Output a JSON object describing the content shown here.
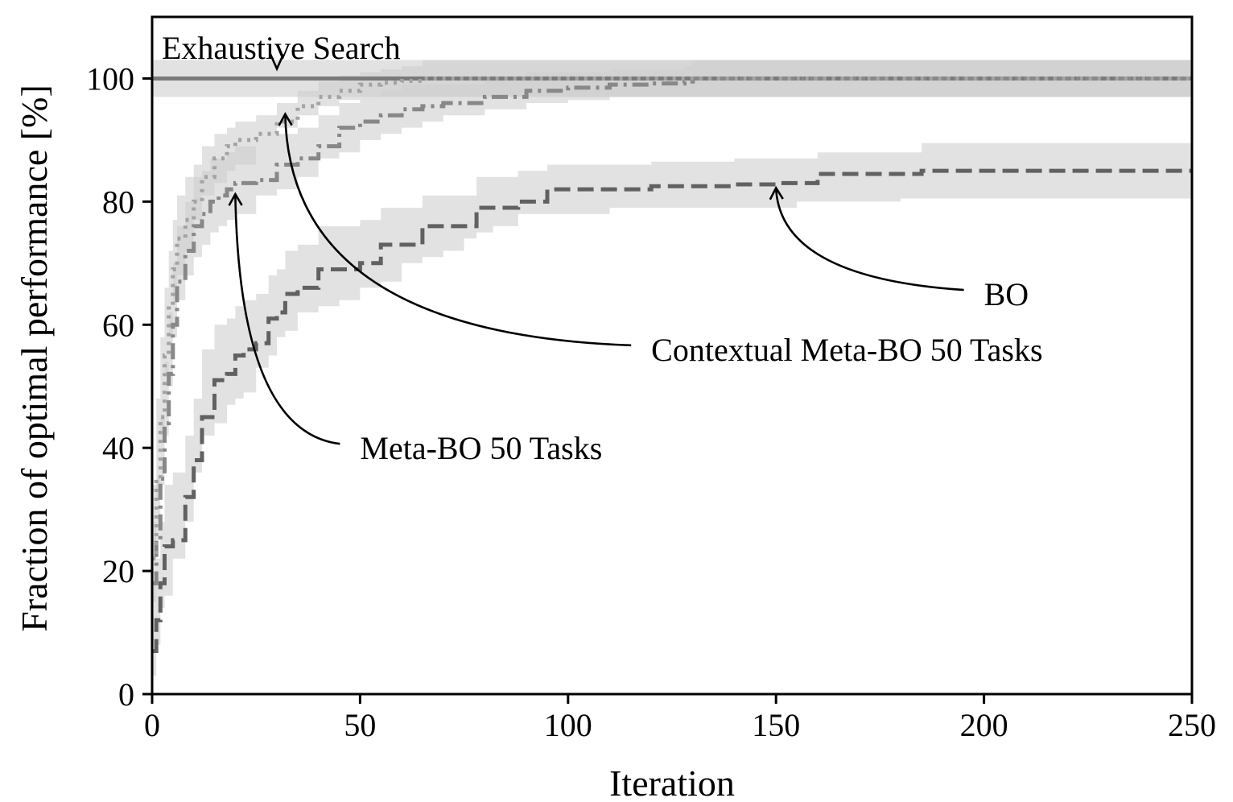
{
  "chart_data": {
    "type": "line",
    "xlabel": "Iteration",
    "ylabel": "Fraction of optimal performance [%]",
    "xlim": [
      0,
      250
    ],
    "ylim": [
      0,
      110
    ],
    "xticks": [
      0,
      50,
      100,
      150,
      200,
      250
    ],
    "yticks": [
      0,
      20,
      40,
      60,
      80,
      100
    ],
    "grid": false,
    "legend": "none",
    "colors": {
      "band": "#cfcfcf",
      "exhaustive": "#7a7a7a",
      "bo": "#616161",
      "meta_bo": "#888888",
      "contextual": "#a3a3a3"
    },
    "series": [
      {
        "name": "Exhaustive Search",
        "style": "solid",
        "x": [
          0,
          250
        ],
        "y": [
          100,
          100
        ],
        "lower": [
          97,
          97
        ],
        "upper": [
          103,
          103
        ]
      },
      {
        "name": "BO",
        "style": "dashed",
        "x": [
          0,
          1,
          2,
          3,
          5,
          8,
          10,
          12,
          15,
          18,
          20,
          22,
          25,
          28,
          30,
          32,
          35,
          40,
          45,
          50,
          55,
          60,
          65,
          70,
          75,
          78,
          82,
          88,
          95,
          100,
          110,
          120,
          130,
          140,
          150,
          155,
          160,
          170,
          180,
          185,
          200,
          220,
          250
        ],
        "y": [
          7,
          12,
          18,
          24,
          25,
          32,
          38,
          45,
          51,
          52,
          55,
          56,
          57,
          61,
          62,
          65,
          66,
          69,
          69,
          70,
          73,
          73,
          76,
          76,
          76,
          79,
          79,
          80,
          82,
          82,
          82,
          82.5,
          82.5,
          82.8,
          83,
          83,
          84.5,
          84.5,
          84.5,
          85,
          85,
          85,
          85
        ],
        "lower": [
          0,
          3,
          8,
          14,
          16,
          22,
          28,
          36,
          42,
          44,
          47,
          48,
          49,
          53,
          55,
          58,
          59,
          62,
          63,
          64,
          66,
          67,
          70,
          71,
          72,
          74,
          75,
          76,
          78,
          78,
          78,
          79,
          79,
          79,
          79,
          79,
          80,
          80,
          80,
          80.5,
          80.5,
          80.5,
          80.5
        ],
        "upper": [
          18,
          22,
          28,
          34,
          36,
          42,
          48,
          56,
          60,
          61,
          63,
          64,
          65,
          68,
          69,
          72,
          73,
          76,
          76,
          77,
          79,
          79,
          81,
          81,
          81,
          84,
          84,
          85,
          86,
          86,
          86,
          86.5,
          86.5,
          87,
          87,
          87,
          88,
          88,
          88,
          89.5,
          89.5,
          89.5,
          89.5
        ]
      },
      {
        "name": "Meta-BO 50 Tasks",
        "style": "dashdot",
        "x": [
          0,
          1,
          2,
          3,
          4,
          5,
          6,
          8,
          10,
          12,
          14,
          16,
          18,
          20,
          25,
          30,
          35,
          40,
          45,
          50,
          55,
          60,
          65,
          70,
          80,
          90,
          100,
          110,
          120,
          128,
          130,
          250
        ],
        "y": [
          18,
          25,
          35,
          44,
          52,
          60,
          67,
          72,
          76,
          78,
          80,
          81,
          82,
          83,
          83.5,
          86,
          87,
          89,
          92,
          93,
          94,
          95,
          95.5,
          96,
          97,
          98,
          98.5,
          99,
          99.2,
          99.5,
          100,
          100
        ],
        "lower": [
          8,
          15,
          25,
          34,
          42,
          50,
          58,
          64,
          68,
          71,
          73,
          75,
          76,
          77,
          78,
          81,
          82,
          84,
          87,
          88,
          90,
          91,
          92,
          93,
          94,
          95,
          96,
          96.5,
          97,
          97,
          97,
          97
        ],
        "upper": [
          28,
          35,
          45,
          54,
          62,
          70,
          76,
          80,
          84,
          85,
          87,
          87,
          88,
          89,
          89,
          91,
          92,
          94,
          96,
          97,
          98,
          99,
          99,
          99,
          100,
          101,
          101,
          101.5,
          101.5,
          102,
          103,
          103
        ]
      },
      {
        "name": "Contextual Meta-BO 50 Tasks",
        "style": "dotted",
        "x": [
          0,
          1,
          2,
          3,
          4,
          5,
          6,
          8,
          10,
          12,
          15,
          18,
          20,
          25,
          30,
          35,
          40,
          45,
          50,
          55,
          60,
          65,
          70,
          250
        ],
        "y": [
          22,
          35,
          45,
          55,
          63,
          69,
          74,
          77,
          80,
          84,
          87,
          89,
          90,
          91,
          93,
          95.5,
          97,
          98,
          99,
          99.3,
          99.6,
          100,
          100,
          100
        ],
        "lower": [
          10,
          22,
          32,
          42,
          52,
          58,
          64,
          68,
          72,
          77,
          81,
          83,
          85,
          86,
          89,
          92,
          94,
          95.5,
          96.5,
          97,
          97,
          97,
          97,
          97
        ],
        "upper": [
          34,
          48,
          58,
          66,
          72,
          77,
          81,
          84,
          86,
          89,
          91,
          92,
          93,
          94,
          96,
          98,
          99.5,
          100.5,
          101,
          101.5,
          102,
          103,
          103,
          103
        ]
      }
    ],
    "annotations": [
      {
        "text": "Exhaustive Search",
        "xy": [
          30,
          100
        ],
        "text_xy": [
          0,
          105
        ]
      },
      {
        "text": "BO",
        "xy": [
          150,
          83
        ],
        "text_xy": [
          200,
          65
        ]
      },
      {
        "text": "Contextual Meta-BO 50 Tasks",
        "xy": [
          32,
          95
        ],
        "text_xy": [
          120,
          56
        ]
      },
      {
        "text": "Meta-BO 50 Tasks",
        "xy": [
          20,
          82
        ],
        "text_xy": [
          50,
          40
        ]
      }
    ]
  }
}
